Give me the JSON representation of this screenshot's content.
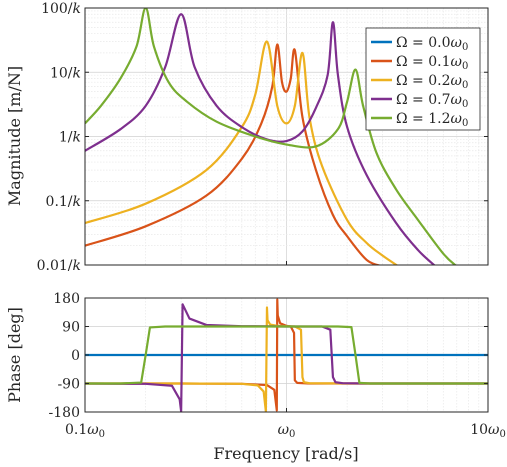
{
  "chart_data": [
    {
      "type": "line",
      "panel": "magnitude",
      "xscale": "log",
      "yscale": "log",
      "xlim_rel_w0": [
        0.1,
        10
      ],
      "ylim_rel_1_over_k": [
        0.01,
        100
      ],
      "ylabel": "Magnitude [m/N]",
      "ytick_labels": [
        "0.01/k",
        "0.1/k",
        "1/k",
        "10/k",
        "100/k"
      ],
      "grid": true,
      "legend_position": "top-right",
      "legend": [
        {
          "label": "Ω = 0.0ω0",
          "color": "#0072BD"
        },
        {
          "label": "Ω = 0.1ω0",
          "color": "#D95319"
        },
        {
          "label": "Ω = 0.2ω0",
          "color": "#EDB120"
        },
        {
          "label": "Ω = 0.7ω0",
          "color": "#7E2F8E"
        },
        {
          "label": "Ω = 1.2ω0",
          "color": "#77AC30"
        }
      ],
      "series": [
        {
          "name": "Ω = 0.0ω0",
          "color": "#0072BD",
          "x": [],
          "y": []
        },
        {
          "name": "Ω = 0.1ω0",
          "color": "#D95319",
          "x": [
            0.1,
            0.2,
            0.4,
            0.6,
            0.75,
            0.85,
            0.9,
            0.95,
            1.0,
            1.05,
            1.1,
            1.2,
            1.4,
            1.7,
            2.0,
            2.5,
            3.0
          ],
          "y": [
            0.02,
            0.04,
            0.12,
            0.45,
            1.6,
            6.0,
            27.0,
            7.0,
            5.0,
            8.0,
            22.0,
            2.0,
            0.3,
            0.06,
            0.028,
            0.012,
            0.0095
          ]
        },
        {
          "name": "Ω = 0.2ω0",
          "color": "#EDB120",
          "x": [
            0.1,
            0.2,
            0.4,
            0.6,
            0.7,
            0.8,
            0.9,
            1.0,
            1.1,
            1.2,
            1.3,
            1.5,
            2.0,
            2.5,
            3.0,
            3.6
          ],
          "y": [
            0.045,
            0.09,
            0.3,
            1.4,
            4.5,
            30.0,
            3.0,
            1.6,
            3.0,
            20.0,
            2.0,
            0.35,
            0.05,
            0.022,
            0.014,
            0.0095
          ]
        },
        {
          "name": "Ω = 0.7ω0",
          "color": "#7E2F8E",
          "x": [
            0.1,
            0.15,
            0.2,
            0.25,
            0.3,
            0.35,
            0.45,
            0.6,
            0.8,
            1.0,
            1.2,
            1.4,
            1.6,
            1.7,
            1.8,
            2.0,
            2.5,
            3.5,
            4.5,
            5.5
          ],
          "y": [
            0.6,
            1.3,
            3.0,
            12.0,
            80.0,
            12.0,
            3.0,
            1.4,
            0.9,
            0.85,
            1.2,
            2.8,
            9.0,
            60.0,
            9.0,
            1.4,
            0.25,
            0.045,
            0.017,
            0.0095
          ]
        },
        {
          "name": "Ω = 1.2ω0",
          "color": "#77AC30",
          "x": [
            0.1,
            0.12,
            0.15,
            0.18,
            0.2,
            0.22,
            0.26,
            0.32,
            0.45,
            0.7,
            1.0,
            1.4,
            1.8,
            2.0,
            2.2,
            2.4,
            2.8,
            3.5,
            4.5,
            6.0,
            7.0
          ],
          "y": [
            1.6,
            3.0,
            8.0,
            25.0,
            100.0,
            25.0,
            7.0,
            3.5,
            1.7,
            1.0,
            0.75,
            0.7,
            1.3,
            3.5,
            11.0,
            3.0,
            0.55,
            0.15,
            0.05,
            0.015,
            0.0095
          ]
        }
      ]
    },
    {
      "type": "line",
      "panel": "phase",
      "xscale": "log",
      "xlim_rel_w0": [
        0.1,
        10
      ],
      "xlabel": "Frequency [rad/s]",
      "xtick_labels": [
        "0.1ω0",
        "ω0",
        "10ω0"
      ],
      "ylabel": "Phase [deg]",
      "ylim": [
        -180,
        180
      ],
      "yticks": [
        180,
        90,
        0,
        -90,
        -180
      ],
      "ytick_labels": [
        "180",
        "90",
        "0",
        "-90",
        "-180"
      ],
      "grid": true,
      "series": [
        {
          "name": "Ω = 0.0ω0",
          "color": "#0072BD",
          "x": [
            0.1,
            10
          ],
          "y": [
            0,
            0
          ]
        },
        {
          "name": "Ω = 0.1ω0",
          "color": "#D95319",
          "x": [
            0.1,
            0.3,
            0.6,
            0.8,
            0.87,
            0.895,
            0.9,
            0.905,
            0.93,
            1.0,
            1.05,
            1.09,
            1.1,
            1.13,
            1.3,
            2.0,
            10.0
          ],
          "y": [
            -90,
            -90,
            -91,
            -95,
            -110,
            -175,
            175,
            125,
            100,
            92,
            90,
            70,
            -80,
            -88,
            -90,
            -90,
            -90
          ]
        },
        {
          "name": "Ω = 0.2ω0",
          "color": "#EDB120",
          "x": [
            0.1,
            0.3,
            0.6,
            0.72,
            0.77,
            0.79,
            0.8,
            0.805,
            0.83,
            0.9,
            1.1,
            1.18,
            1.2,
            1.22,
            1.3,
            2.0,
            10.0
          ],
          "y": [
            -90,
            -90,
            -91,
            -96,
            -115,
            -178,
            150,
            110,
            96,
            92,
            90,
            80,
            -70,
            -86,
            -89,
            -90,
            -90
          ]
        },
        {
          "name": "Ω = 0.7ω0",
          "color": "#7E2F8E",
          "x": [
            0.1,
            0.2,
            0.27,
            0.295,
            0.3,
            0.305,
            0.33,
            0.4,
            0.6,
            1.0,
            1.5,
            1.65,
            1.7,
            1.75,
            1.9,
            2.5,
            10.0
          ],
          "y": [
            -90,
            -91,
            -97,
            -140,
            -178,
            160,
            115,
            95,
            91,
            90,
            90,
            80,
            -70,
            -86,
            -89,
            -90,
            -90
          ]
        },
        {
          "name": "Ω = 1.2ω0",
          "color": "#77AC30",
          "x": [
            0.1,
            0.15,
            0.19,
            0.2,
            0.21,
            0.25,
            0.5,
            1.0,
            1.8,
            2.1,
            2.2,
            2.3,
            2.6,
            4.0,
            10.0
          ],
          "y": [
            -90,
            -90,
            -87,
            0,
            87,
            90,
            90,
            90,
            90,
            88,
            0,
            -88,
            -90,
            -90,
            -90
          ]
        }
      ]
    }
  ]
}
